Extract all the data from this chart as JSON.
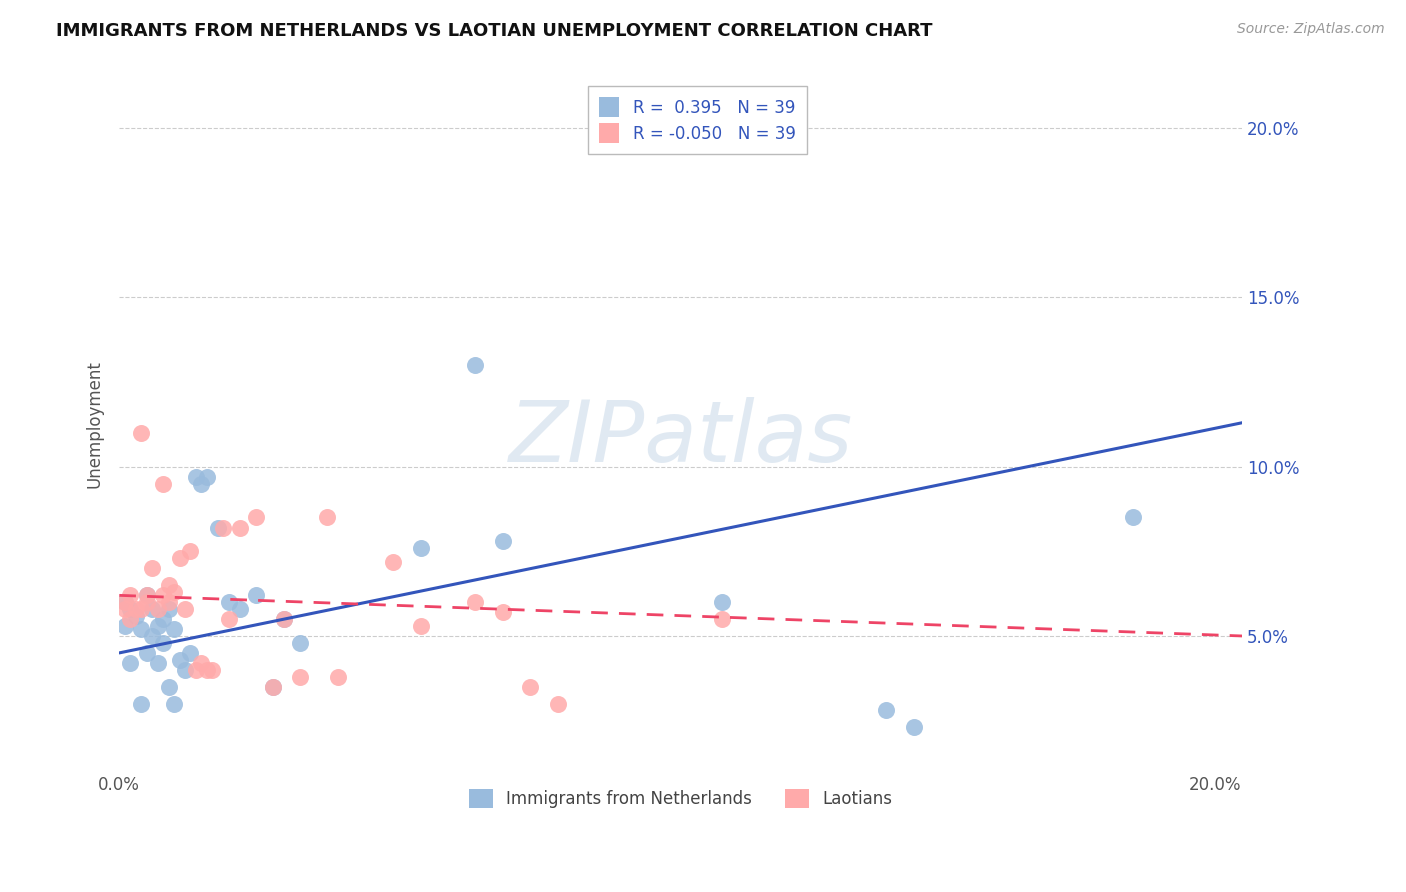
{
  "title": "IMMIGRANTS FROM NETHERLANDS VS LAOTIAN UNEMPLOYMENT CORRELATION CHART",
  "source": "Source: ZipAtlas.com",
  "ylabel": "Unemployment",
  "xlim": [
    0.0,
    0.205
  ],
  "ylim": [
    0.01,
    0.215
  ],
  "yticks": [
    0.05,
    0.1,
    0.15,
    0.2
  ],
  "right_ytick_labels": [
    "5.0%",
    "10.0%",
    "15.0%",
    "20.0%"
  ],
  "watermark": "ZIPatlas",
  "blue_color": "#99BBDD",
  "pink_color": "#FFAAAA",
  "blue_line_color": "#3355BB",
  "pink_line_color": "#EE4466",
  "blue_r": "0.395",
  "blue_n": "39",
  "pink_r": "-0.050",
  "pink_n": "39",
  "scatter_blue_x": [
    0.001,
    0.001,
    0.002,
    0.002,
    0.003,
    0.004,
    0.004,
    0.005,
    0.005,
    0.006,
    0.006,
    0.007,
    0.007,
    0.008,
    0.008,
    0.009,
    0.009,
    0.01,
    0.01,
    0.011,
    0.012,
    0.013,
    0.014,
    0.015,
    0.016,
    0.018,
    0.02,
    0.022,
    0.025,
    0.028,
    0.03,
    0.033,
    0.055,
    0.065,
    0.07,
    0.11,
    0.14,
    0.145,
    0.185
  ],
  "scatter_blue_y": [
    0.06,
    0.053,
    0.058,
    0.042,
    0.056,
    0.052,
    0.03,
    0.062,
    0.045,
    0.05,
    0.058,
    0.053,
    0.042,
    0.055,
    0.048,
    0.058,
    0.035,
    0.052,
    0.03,
    0.043,
    0.04,
    0.045,
    0.097,
    0.095,
    0.097,
    0.082,
    0.06,
    0.058,
    0.062,
    0.035,
    0.055,
    0.048,
    0.076,
    0.13,
    0.078,
    0.06,
    0.028,
    0.023,
    0.085
  ],
  "scatter_pink_x": [
    0.001,
    0.001,
    0.002,
    0.002,
    0.003,
    0.004,
    0.004,
    0.005,
    0.005,
    0.006,
    0.007,
    0.008,
    0.008,
    0.009,
    0.009,
    0.01,
    0.011,
    0.012,
    0.013,
    0.014,
    0.015,
    0.016,
    0.017,
    0.019,
    0.02,
    0.022,
    0.025,
    0.028,
    0.03,
    0.033,
    0.038,
    0.04,
    0.05,
    0.055,
    0.065,
    0.07,
    0.075,
    0.08,
    0.11
  ],
  "scatter_pink_y": [
    0.06,
    0.058,
    0.062,
    0.055,
    0.058,
    0.058,
    0.11,
    0.062,
    0.06,
    0.07,
    0.058,
    0.062,
    0.095,
    0.06,
    0.065,
    0.063,
    0.073,
    0.058,
    0.075,
    0.04,
    0.042,
    0.04,
    0.04,
    0.082,
    0.055,
    0.082,
    0.085,
    0.035,
    0.055,
    0.038,
    0.085,
    0.038,
    0.072,
    0.053,
    0.06,
    0.057,
    0.035,
    0.03,
    0.055
  ],
  "blue_trend_x0": 0.0,
  "blue_trend_x1": 0.205,
  "blue_trend_y0": 0.045,
  "blue_trend_y1": 0.113,
  "pink_trend_x0": 0.0,
  "pink_trend_x1": 0.205,
  "pink_trend_y0": 0.062,
  "pink_trend_y1": 0.05
}
